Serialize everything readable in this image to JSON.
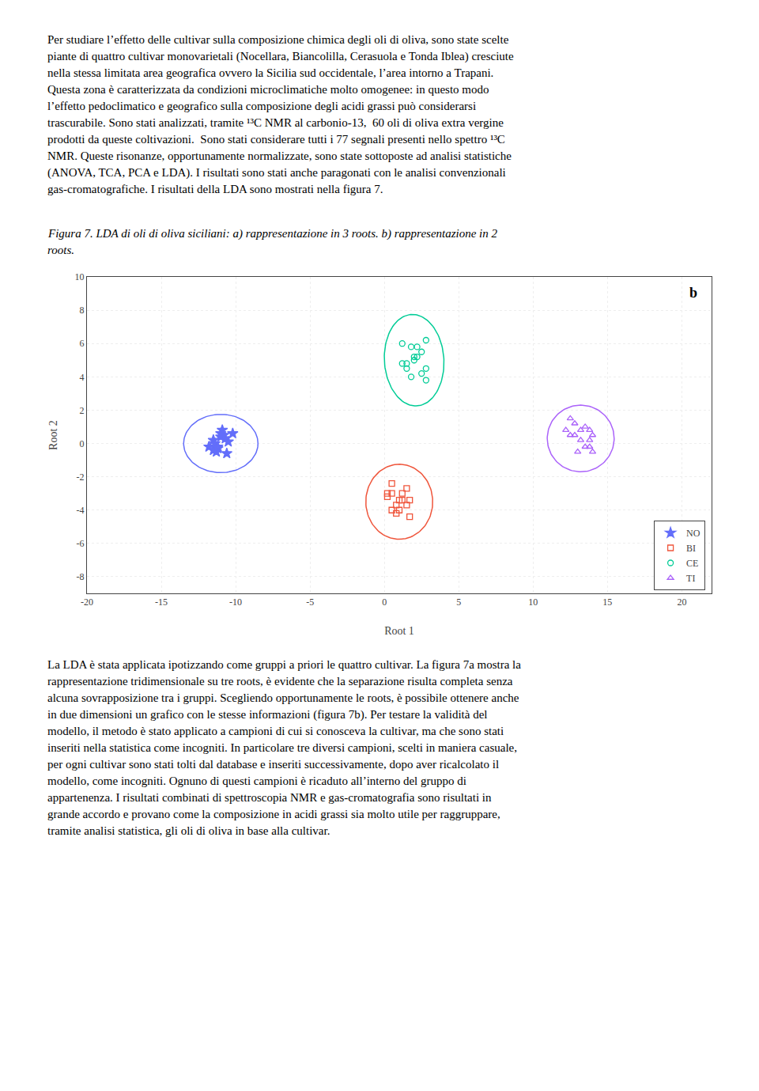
{
  "chart_data": {
    "type": "scatter",
    "x_label": "Root 1",
    "y_label": "Root 2",
    "xlim": [
      -20,
      22
    ],
    "ylim": [
      -9,
      10
    ],
    "xticks": [
      -20,
      -15,
      -10,
      -5,
      0,
      5,
      10,
      15,
      20
    ],
    "yticks": [
      -8,
      -6,
      -4,
      -2,
      0,
      2,
      4,
      6,
      8,
      10
    ],
    "grid": true,
    "legend": "lower right",
    "series": [
      {
        "name": "NO",
        "marker": "star",
        "x": [
          -11.5,
          -10.8,
          -11.2,
          -10.5,
          -11.0,
          -11.3,
          -10.7,
          -11.8,
          -10.2,
          -11.5,
          -10.9,
          -11.4,
          -11.0,
          -11.2,
          -10.6
        ],
        "values": [
          0.2,
          0.5,
          -0.3,
          0.1,
          0.4,
          -0.5,
          0.3,
          -0.2,
          0.6,
          -0.4,
          0.8,
          0.0,
          0.6,
          -0.2,
          -0.6
        ],
        "ellipse": {
          "center": [
            -11.0,
            0.0
          ],
          "width": 5.0,
          "height": 3.5,
          "angle": 0
        }
      },
      {
        "name": "BI",
        "marker": "square",
        "x": [
          0.5,
          1.2,
          0.8,
          1.5,
          0.2,
          1.0,
          1.7,
          0.5,
          1.2,
          0.8,
          1.5,
          0.2,
          1.0,
          1.7,
          0.5
        ],
        "values": [
          -3.0,
          -3.4,
          -3.7,
          -2.7,
          -3.2,
          -4.0,
          -3.4,
          -2.4,
          -3.0,
          -4.2,
          -3.7,
          -3.0,
          -3.4,
          -4.4,
          -4.0
        ],
        "ellipse": {
          "center": [
            1.0,
            -3.5
          ],
          "width": 4.5,
          "height": 4.5,
          "angle": 5
        }
      },
      {
        "name": "CE",
        "marker": "circle",
        "x": [
          1.5,
          2.2,
          2.8,
          1.8,
          2.5,
          1.2,
          2.0,
          2.8,
          1.5,
          2.2,
          1.8,
          2.5,
          1.2,
          2.0,
          2.8
        ],
        "values": [
          4.8,
          5.2,
          4.5,
          5.8,
          4.2,
          6.0,
          5.0,
          3.8,
          4.5,
          5.8,
          4.0,
          5.5,
          4.8,
          5.2,
          6.2
        ],
        "ellipse": {
          "center": [
            2.0,
            5.0
          ],
          "width": 4.0,
          "height": 5.5,
          "angle": 5
        }
      },
      {
        "name": "TI",
        "marker": "triangle",
        "x": [
          12.5,
          13.2,
          13.8,
          12.8,
          13.5,
          14.0,
          12.2,
          13.0,
          13.8,
          12.5,
          13.2,
          13.8,
          12.8,
          13.5,
          14.0
        ],
        "values": [
          0.5,
          0.8,
          0.2,
          1.2,
          -0.2,
          0.5,
          0.8,
          -0.5,
          0.8,
          1.5,
          0.2,
          -0.2,
          0.5,
          1.0,
          -0.5
        ],
        "ellipse": {
          "center": [
            13.2,
            0.3
          ],
          "width": 4.5,
          "height": 4.0,
          "angle": 0
        }
      }
    ],
    "annotations": {
      "paragraph_1": [
        "Per studiare l’effetto delle cultivar sulla composizione chimica degli oli di oliva, sono state scelte",
        "piante di quattro cultivar monovarietali (Nocellara, Biancolilla, Cerasuola e Tonda Iblea) cresciute",
        "nella stessa limitata area geografica ovvero la Sicilia sud occidentale, l’area intorno a Trapani.",
        "Questa zona è caratterizzata da condizioni microclimatiche molto omogenee: in questo modo",
        "l’effetto pedoclimatico e geografico sulla composizione degli acidi grassi può considerarsi",
        "trascurabile. Sono stati analizzati, tramite ¹³C NMR al carbonio-13,  60 oli di oliva extra vergine",
        "prodotti da queste coltivazioni.  Sono stati considerare tutti i 77 segnali presenti nello spettro ¹³C",
        "NMR. Queste risonanze, opportunamente normalizzate, sono state sottoposte ad analisi statistiche",
        "(ANOVA, TCA, PCA e LDA). I risultati sono stati anche paragonati con le analisi convenzionali",
        "gas-cromatografiche. I risultati della LDA sono mostrati nella figura 7."
      ],
      "caption": [
        "Figura 7. LDA di oli di oliva siciliani: a) rappresentazione in 3 roots. b) rappresentazione in 2",
        "roots."
      ],
      "panel": "b",
      "paragraph_2": [
        "La LDA è stata applicata ipotizzando come gruppi a priori le quattro cultivar. La figura 7a mostra la",
        "rappresentazione tridimensionale su tre roots, è evidente che la separazione risulta completa senza",
        "alcuna sovrapposizione tra i gruppi. Scegliendo opportunamente le roots, è possibile ottenere anche",
        "in due dimensioni un grafico con le stesse informazioni (figura 7b). Per testare la validità del",
        "modello, il metodo è stato applicato a campioni di cui si conosceva la cultivar, ma che sono stati",
        "inseriti nella statistica come incogniti. In particolare tre diversi campioni, scelti in maniera casuale,",
        "per ogni cultivar sono stati tolti dal database e inseriti successivamente, dopo aver ricalcolato il",
        "modello, come incogniti. Ognuno di questi campioni è ricaduto all’interno del gruppo di",
        "appartenenza. I risultati combinati di spettroscopia NMR e gas-cromatografia sono risultati in",
        "grande accordo e provano come la composizione in acidi grassi sia molto utile per raggruppare,",
        "tramite analisi statistica, gli oli di oliva in base alla cultivar."
      ]
    }
  }
}
